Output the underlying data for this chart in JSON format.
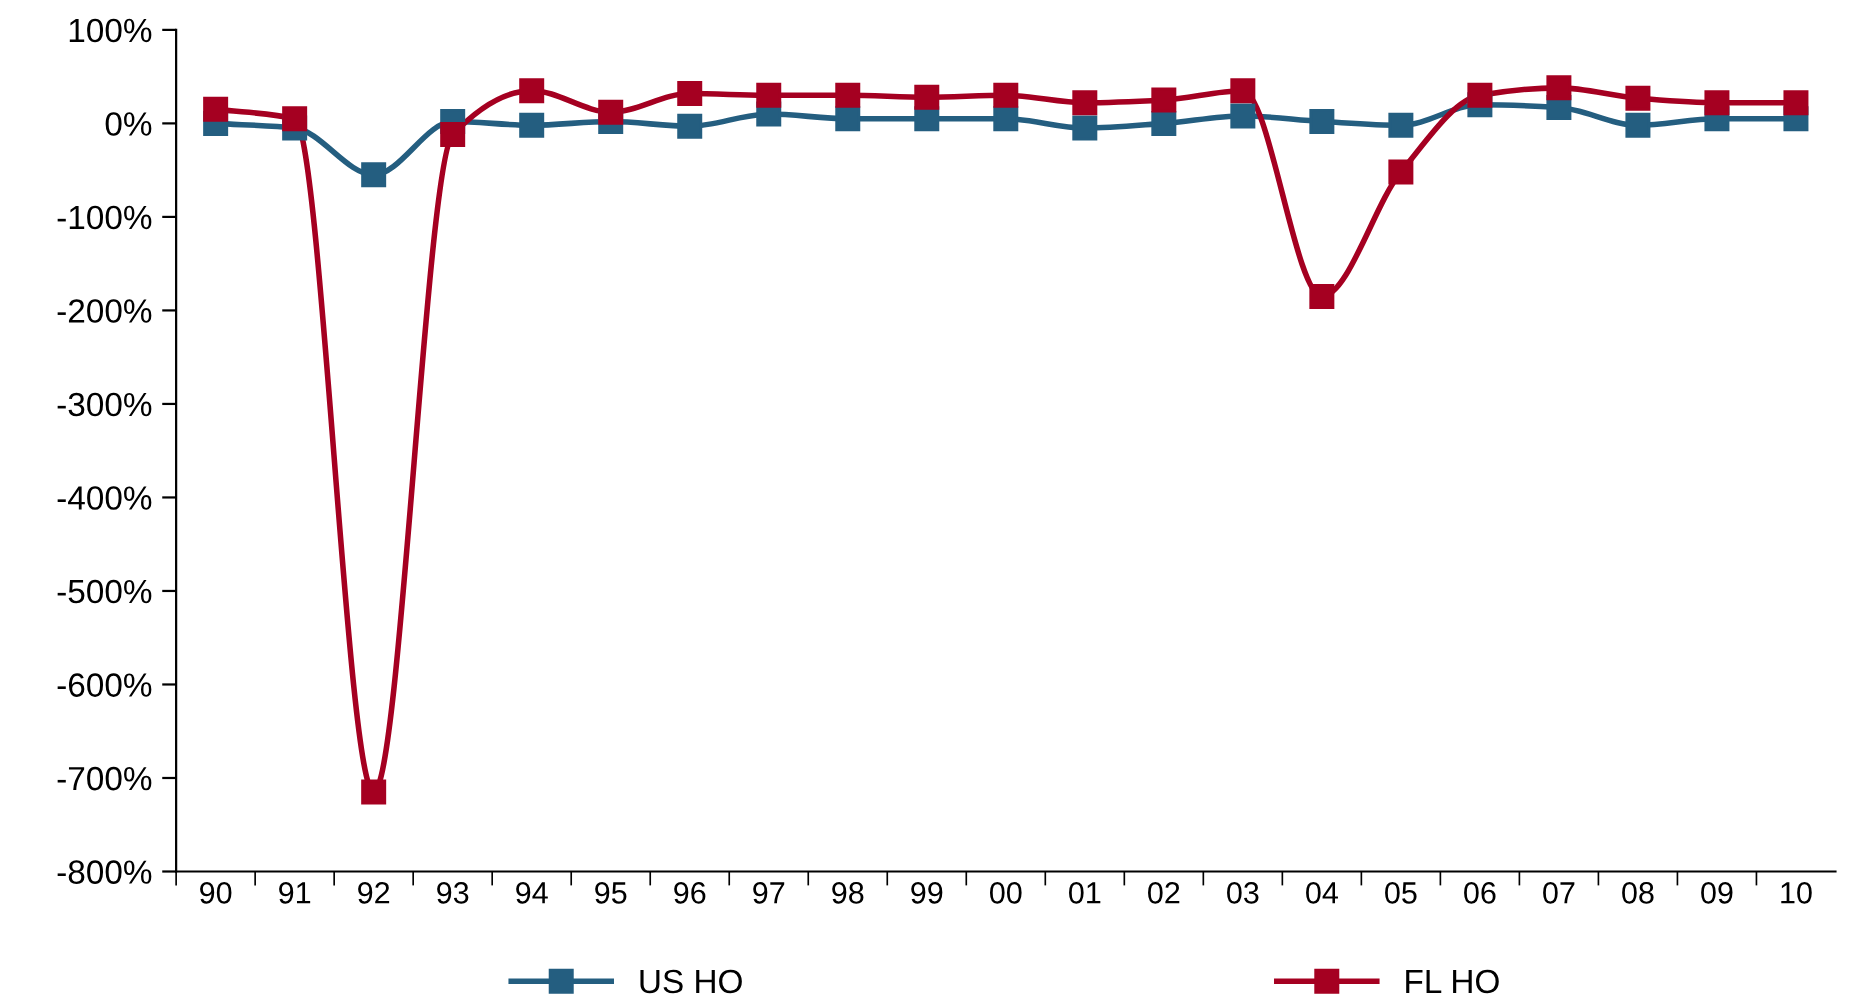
{
  "chart_data": {
    "type": "line",
    "categories": [
      "90",
      "91",
      "92",
      "93",
      "94",
      "95",
      "96",
      "97",
      "98",
      "99",
      "00",
      "01",
      "02",
      "03",
      "04",
      "05",
      "06",
      "07",
      "08",
      "09",
      "10"
    ],
    "series": [
      {
        "name": "US HO",
        "color": "#245e80",
        "values": [
          0,
          -5,
          -55,
          2,
          -2,
          2,
          -3,
          10,
          5,
          5,
          5,
          -5,
          0,
          8,
          2,
          -2,
          20,
          17,
          -2,
          5,
          5
        ]
      },
      {
        "name": "FL HO",
        "color": "#a50021",
        "values": [
          15,
          5,
          -715,
          -12,
          35,
          12,
          32,
          30,
          30,
          28,
          30,
          22,
          25,
          35,
          -185,
          -52,
          30,
          38,
          27,
          22,
          22
        ]
      }
    ],
    "ylim": [
      -800,
      100
    ],
    "yticks": [
      {
        "value": -800,
        "label": "-800%"
      },
      {
        "value": -700,
        "label": "-700%"
      },
      {
        "value": -600,
        "label": "-600%"
      },
      {
        "value": -500,
        "label": "-500%"
      },
      {
        "value": -400,
        "label": "-400%"
      },
      {
        "value": -300,
        "label": "-300%"
      },
      {
        "value": -200,
        "label": "-200%"
      },
      {
        "value": -100,
        "label": "-100%"
      },
      {
        "value": 0,
        "label": "0%"
      },
      {
        "value": 100,
        "label": "100%"
      }
    ],
    "grid": false,
    "legend": "bottom",
    "marker": "square",
    "line_style": "solid"
  }
}
